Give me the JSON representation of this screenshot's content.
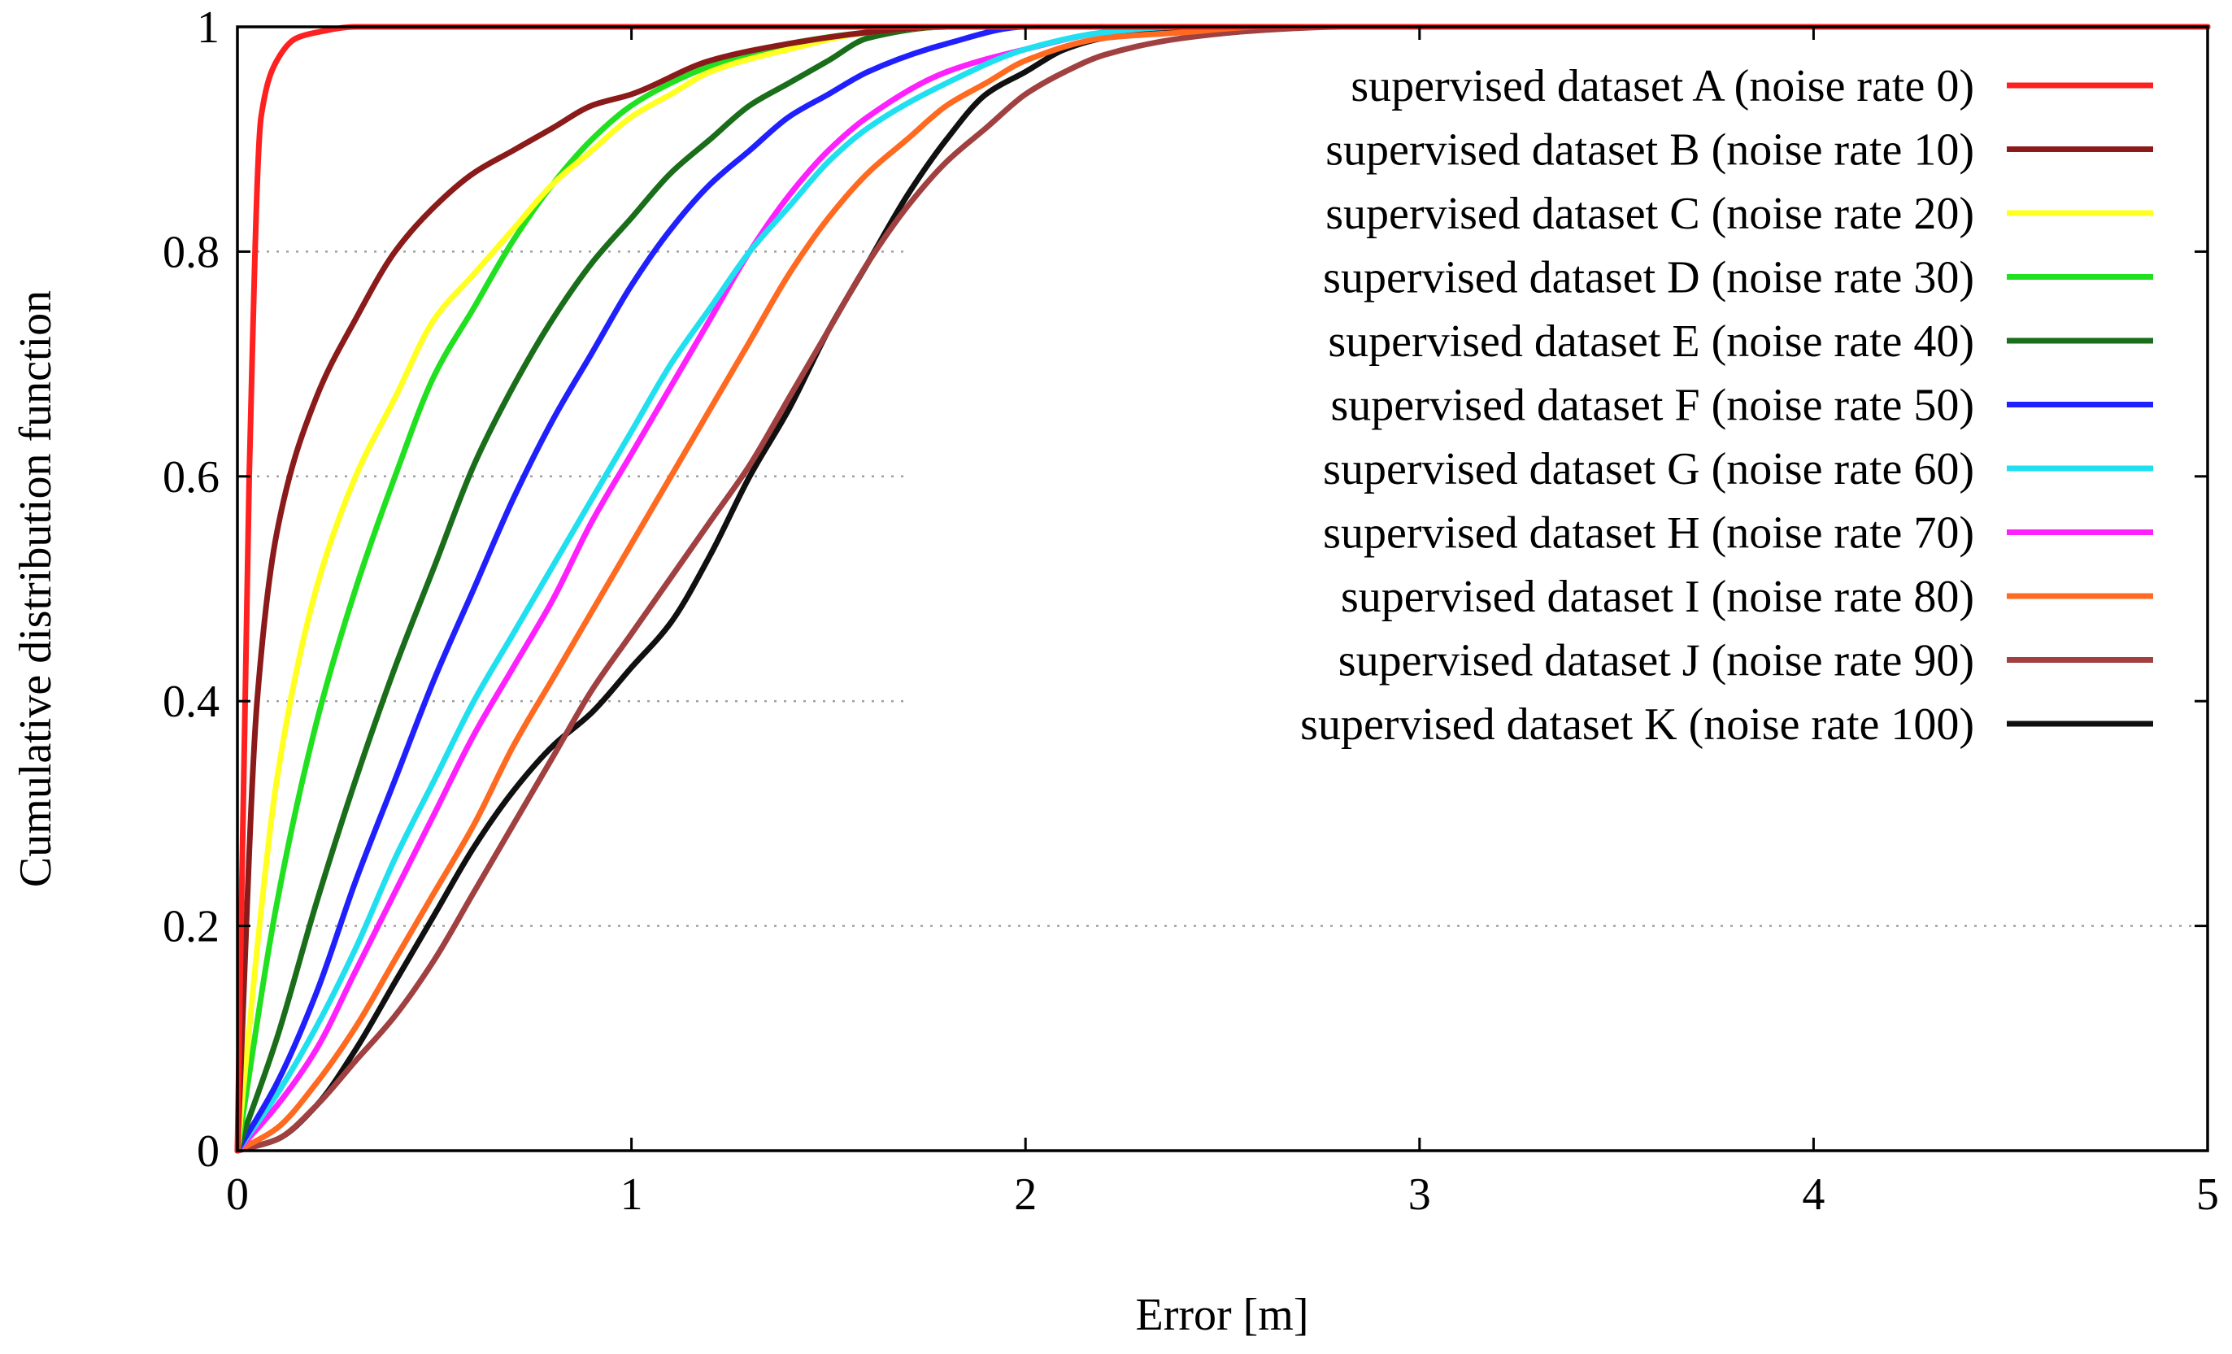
{
  "chart_data": {
    "type": "line",
    "title": "",
    "xlabel": "Error [m]",
    "ylabel": "Cumulative distribution function",
    "xlim": [
      0,
      5
    ],
    "ylim": [
      0,
      1
    ],
    "x_ticks": [
      0,
      1,
      2,
      3,
      4,
      5
    ],
    "x_tick_labels": [
      "0",
      "1",
      "2",
      "3",
      "4",
      "5"
    ],
    "y_ticks": [
      0,
      0.2,
      0.4,
      0.6,
      0.8,
      1
    ],
    "y_tick_labels": [
      "0",
      "0.2",
      "0.4",
      "0.6",
      "0.8",
      "1"
    ],
    "grid": "horizontal dotted",
    "legend_position": "top-right",
    "series": [
      {
        "name": "supervised dataset A (noise rate 0)",
        "color": "#ff2020",
        "x": [
          0,
          0.03,
          0.06,
          0.1,
          0.15,
          0.2,
          0.3,
          0.5,
          1,
          5
        ],
        "y": [
          0,
          0.6,
          0.92,
          0.97,
          0.99,
          0.995,
          1,
          1,
          1,
          1
        ]
      },
      {
        "name": "supervised dataset B (noise rate 10)",
        "color": "#8b1a1a",
        "x": [
          0,
          0.05,
          0.1,
          0.2,
          0.3,
          0.4,
          0.5,
          0.6,
          0.7,
          0.8,
          0.9,
          1,
          1.2,
          1.4,
          1.6,
          1.8,
          2,
          5
        ],
        "y": [
          0,
          0.4,
          0.55,
          0.67,
          0.74,
          0.8,
          0.84,
          0.87,
          0.89,
          0.91,
          0.93,
          0.94,
          0.97,
          0.985,
          0.995,
          1,
          1,
          1
        ]
      },
      {
        "name": "supervised dataset C (noise rate 20)",
        "color": "#ffff20",
        "x": [
          0,
          0.05,
          0.1,
          0.2,
          0.3,
          0.4,
          0.5,
          0.6,
          0.7,
          0.8,
          0.9,
          1,
          1.1,
          1.2,
          1.4,
          1.6,
          1.8,
          2,
          5
        ],
        "y": [
          0,
          0.18,
          0.33,
          0.5,
          0.6,
          0.67,
          0.74,
          0.78,
          0.82,
          0.86,
          0.89,
          0.92,
          0.94,
          0.96,
          0.98,
          0.995,
          1,
          1,
          1
        ]
      },
      {
        "name": "supervised dataset D (noise rate 30)",
        "color": "#20e020",
        "x": [
          0,
          0.1,
          0.2,
          0.3,
          0.4,
          0.5,
          0.6,
          0.7,
          0.8,
          0.9,
          1,
          1.1,
          1.2,
          1.3,
          1.4,
          1.6,
          1.8,
          2,
          5
        ],
        "y": [
          0,
          0.22,
          0.38,
          0.5,
          0.6,
          0.69,
          0.75,
          0.81,
          0.86,
          0.9,
          0.93,
          0.95,
          0.965,
          0.975,
          0.985,
          0.995,
          1,
          1,
          1
        ]
      },
      {
        "name": "supervised dataset E (noise rate 40)",
        "color": "#1a6e1a",
        "x": [
          0,
          0.1,
          0.2,
          0.3,
          0.4,
          0.5,
          0.6,
          0.7,
          0.8,
          0.9,
          1,
          1.1,
          1.2,
          1.3,
          1.4,
          1.5,
          1.6,
          1.8,
          2,
          5
        ],
        "y": [
          0,
          0.1,
          0.22,
          0.33,
          0.43,
          0.52,
          0.61,
          0.68,
          0.74,
          0.79,
          0.83,
          0.87,
          0.9,
          0.93,
          0.95,
          0.97,
          0.99,
          1,
          1,
          1
        ]
      },
      {
        "name": "supervised dataset F (noise rate 50)",
        "color": "#2020ff",
        "x": [
          0,
          0.1,
          0.2,
          0.3,
          0.4,
          0.5,
          0.6,
          0.7,
          0.8,
          0.9,
          1,
          1.1,
          1.2,
          1.3,
          1.4,
          1.5,
          1.6,
          1.8,
          2,
          2.2,
          5
        ],
        "y": [
          0,
          0.06,
          0.14,
          0.24,
          0.33,
          0.42,
          0.5,
          0.58,
          0.65,
          0.71,
          0.77,
          0.82,
          0.86,
          0.89,
          0.92,
          0.94,
          0.96,
          0.985,
          1,
          1,
          1
        ]
      },
      {
        "name": "supervised dataset G (noise rate 60)",
        "color": "#20e0f0",
        "x": [
          0,
          0.1,
          0.2,
          0.3,
          0.4,
          0.5,
          0.6,
          0.7,
          0.8,
          0.9,
          1,
          1.1,
          1.2,
          1.3,
          1.4,
          1.5,
          1.6,
          1.8,
          2,
          2.2,
          2.4,
          5
        ],
        "y": [
          0,
          0.05,
          0.11,
          0.18,
          0.26,
          0.33,
          0.4,
          0.46,
          0.52,
          0.58,
          0.64,
          0.7,
          0.75,
          0.8,
          0.84,
          0.88,
          0.91,
          0.95,
          0.98,
          0.995,
          1,
          1
        ]
      },
      {
        "name": "supervised dataset H (noise rate 70)",
        "color": "#ff20ff",
        "x": [
          0,
          0.1,
          0.2,
          0.3,
          0.4,
          0.5,
          0.6,
          0.7,
          0.8,
          0.9,
          1,
          1.1,
          1.2,
          1.3,
          1.4,
          1.5,
          1.6,
          1.8,
          2,
          2.2,
          2.4,
          5
        ],
        "y": [
          0,
          0.04,
          0.09,
          0.16,
          0.23,
          0.3,
          0.37,
          0.43,
          0.49,
          0.56,
          0.62,
          0.68,
          0.74,
          0.8,
          0.85,
          0.89,
          0.92,
          0.96,
          0.98,
          0.995,
          1,
          1
        ]
      },
      {
        "name": "supervised dataset I (noise rate 80)",
        "color": "#ff6a20",
        "x": [
          0,
          0.1,
          0.2,
          0.3,
          0.4,
          0.5,
          0.6,
          0.7,
          0.8,
          0.9,
          1,
          1.1,
          1.2,
          1.3,
          1.4,
          1.5,
          1.6,
          1.7,
          1.8,
          1.9,
          2,
          2.2,
          2.4,
          2.6,
          5
        ],
        "y": [
          0,
          0.02,
          0.06,
          0.11,
          0.17,
          0.23,
          0.29,
          0.36,
          0.42,
          0.48,
          0.54,
          0.6,
          0.66,
          0.72,
          0.78,
          0.83,
          0.87,
          0.9,
          0.93,
          0.95,
          0.97,
          0.99,
          0.995,
          1,
          1
        ]
      },
      {
        "name": "supervised dataset J (noise rate 90)",
        "color": "#a04040",
        "x": [
          0,
          0.1,
          0.2,
          0.3,
          0.4,
          0.5,
          0.6,
          0.7,
          0.8,
          0.9,
          1,
          1.1,
          1.2,
          1.3,
          1.4,
          1.5,
          1.6,
          1.7,
          1.8,
          1.9,
          2,
          2.1,
          2.2,
          2.4,
          2.6,
          2.8,
          5
        ],
        "y": [
          0,
          0.01,
          0.04,
          0.08,
          0.12,
          0.17,
          0.23,
          0.29,
          0.35,
          0.41,
          0.46,
          0.51,
          0.56,
          0.61,
          0.67,
          0.73,
          0.79,
          0.84,
          0.88,
          0.91,
          0.94,
          0.96,
          0.975,
          0.99,
          0.997,
          1,
          1
        ]
      },
      {
        "name": "supervised dataset K (noise rate 100)",
        "color": "#101010",
        "x": [
          0,
          0.1,
          0.2,
          0.3,
          0.4,
          0.5,
          0.6,
          0.7,
          0.8,
          0.9,
          1,
          1.1,
          1.2,
          1.3,
          1.4,
          1.5,
          1.6,
          1.7,
          1.8,
          1.9,
          2,
          2.1,
          2.2,
          2.4,
          2.6,
          2.8,
          5
        ],
        "y": [
          0,
          0.01,
          0.04,
          0.09,
          0.15,
          0.21,
          0.27,
          0.32,
          0.36,
          0.39,
          0.43,
          0.47,
          0.53,
          0.6,
          0.66,
          0.73,
          0.79,
          0.85,
          0.9,
          0.94,
          0.96,
          0.98,
          0.99,
          0.997,
          1,
          1,
          1
        ]
      }
    ]
  }
}
